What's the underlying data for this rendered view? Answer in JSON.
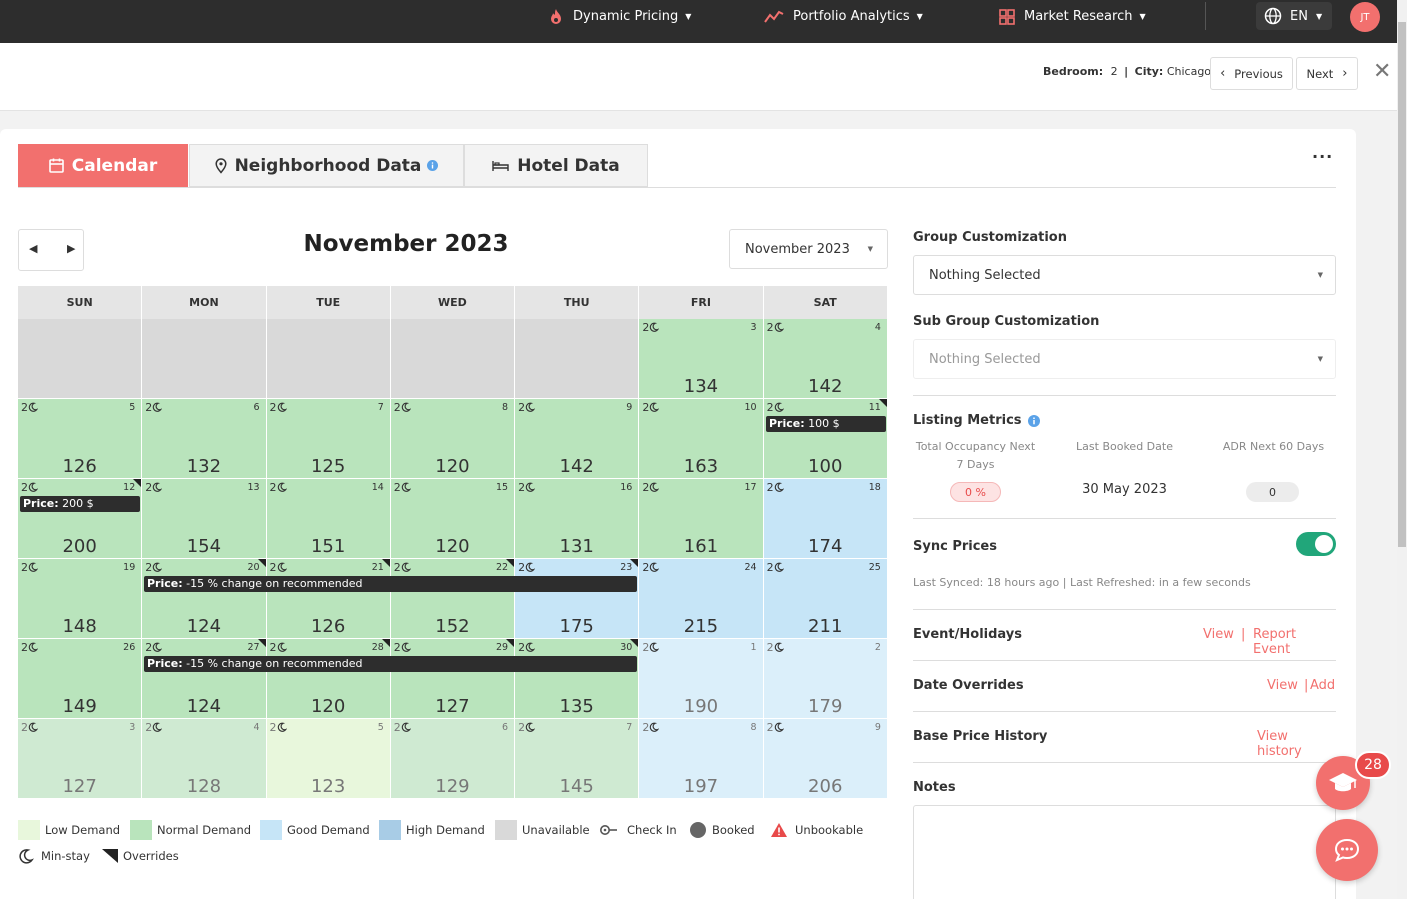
{
  "nav": {
    "items": [
      {
        "label": "Dynamic Pricing",
        "icon": "flame-icon"
      },
      {
        "label": "Portfolio Analytics",
        "icon": "trend-icon"
      },
      {
        "label": "Market Research",
        "icon": "grid-icon"
      }
    ],
    "lang": "EN",
    "avatar": "JT"
  },
  "header": {
    "bedroom_label": "Bedroom:",
    "bedroom_value": "2",
    "sep": "|",
    "city_label": "City:",
    "city_value": "Chicago",
    "prev": "Previous",
    "next": "Next"
  },
  "tabs": {
    "calendar": "Calendar",
    "neighborhood": "Neighborhood Data",
    "hotel": "Hotel Data",
    "more": "···"
  },
  "calendar": {
    "title": "November 2023",
    "month_select": "November 2023",
    "days_of_week": [
      "SUN",
      "MON",
      "TUE",
      "WED",
      "THU",
      "FRI",
      "SAT"
    ],
    "minstay": "2",
    "weeks": [
      [
        {
          "day": "",
          "price": "",
          "status": "unavailable"
        },
        {
          "day": "",
          "price": "",
          "status": "unavailable"
        },
        {
          "day": "",
          "price": "",
          "status": "unavailable"
        },
        {
          "day": "",
          "price": "",
          "status": "unavailable"
        },
        {
          "day": "",
          "price": "",
          "status": "unavailable"
        },
        {
          "day": "3",
          "price": "134",
          "status": "normal"
        },
        {
          "day": "4",
          "price": "142",
          "status": "normal"
        }
      ],
      [
        {
          "day": "5",
          "price": "126",
          "status": "normal"
        },
        {
          "day": "6",
          "price": "132",
          "status": "normal"
        },
        {
          "day": "7",
          "price": "125",
          "status": "normal"
        },
        {
          "day": "8",
          "price": "120",
          "status": "normal"
        },
        {
          "day": "9",
          "price": "142",
          "status": "normal"
        },
        {
          "day": "10",
          "price": "163",
          "status": "normal"
        },
        {
          "day": "11",
          "price": "100",
          "status": "normal",
          "override": true
        }
      ],
      [
        {
          "day": "12",
          "price": "200",
          "status": "normal",
          "override": true
        },
        {
          "day": "13",
          "price": "154",
          "status": "normal"
        },
        {
          "day": "14",
          "price": "151",
          "status": "normal"
        },
        {
          "day": "15",
          "price": "120",
          "status": "normal"
        },
        {
          "day": "16",
          "price": "131",
          "status": "normal"
        },
        {
          "day": "17",
          "price": "161",
          "status": "normal"
        },
        {
          "day": "18",
          "price": "174",
          "status": "good"
        }
      ],
      [
        {
          "day": "19",
          "price": "148",
          "status": "normal"
        },
        {
          "day": "20",
          "price": "124",
          "status": "normal",
          "override": true
        },
        {
          "day": "21",
          "price": "126",
          "status": "normal",
          "override": true
        },
        {
          "day": "22",
          "price": "152",
          "status": "normal",
          "override": true
        },
        {
          "day": "23",
          "price": "175",
          "status": "good",
          "override": true
        },
        {
          "day": "24",
          "price": "215",
          "status": "good"
        },
        {
          "day": "25",
          "price": "211",
          "status": "good"
        }
      ],
      [
        {
          "day": "26",
          "price": "149",
          "status": "normal"
        },
        {
          "day": "27",
          "price": "124",
          "status": "normal",
          "override": true
        },
        {
          "day": "28",
          "price": "120",
          "status": "normal",
          "override": true
        },
        {
          "day": "29",
          "price": "127",
          "status": "normal",
          "override": true
        },
        {
          "day": "30",
          "price": "135",
          "status": "normal",
          "override": true
        },
        {
          "day": "1",
          "price": "190",
          "status": "good-faded"
        },
        {
          "day": "2",
          "price": "179",
          "status": "good-faded"
        }
      ],
      [
        {
          "day": "3",
          "price": "127",
          "status": "normal-faded"
        },
        {
          "day": "4",
          "price": "128",
          "status": "normal-faded"
        },
        {
          "day": "5",
          "price": "123",
          "status": "low-faded"
        },
        {
          "day": "6",
          "price": "129",
          "status": "normal-faded"
        },
        {
          "day": "7",
          "price": "145",
          "status": "normal-faded"
        },
        {
          "day": "8",
          "price": "197",
          "status": "good-faded"
        },
        {
          "day": "9",
          "price": "206",
          "status": "good-faded"
        }
      ]
    ],
    "labels": {
      "price_word": "Price:",
      "sat11": "100 $",
      "sun12": "200 $",
      "wk4": "-15 % change on recommended",
      "wk5": "-15 % change on recommended"
    },
    "colors": {
      "unavailable": "#d9d9d9",
      "normal": "#b9e4bc",
      "good": "#c6e5f7",
      "normal_faded": "#cfead2",
      "good_faded": "#dbeffa",
      "low_faded": "#e8f7dc"
    }
  },
  "legend": [
    {
      "label": "Low Demand",
      "color": "#e8f7dc"
    },
    {
      "label": "Normal Demand",
      "color": "#b9e4bc"
    },
    {
      "label": "Good Demand",
      "color": "#c6e5f7"
    },
    {
      "label": "High Demand",
      "color": "#a8cce6"
    },
    {
      "label": "Unavailable",
      "color": "#d9d9d9"
    },
    {
      "label": "Check In",
      "icon": "key-icon"
    },
    {
      "label": "Booked",
      "icon": "dot-icon"
    },
    {
      "label": "Unbookable",
      "icon": "warning-icon"
    },
    {
      "label": "Min-stay",
      "icon": "moon-icon"
    },
    {
      "label": "Overrides",
      "icon": "corner-icon"
    }
  ],
  "panel": {
    "group_title": "Group Customization",
    "group_value": "Nothing Selected",
    "subgroup_title": "Sub Group Customization",
    "subgroup_value": "Nothing Selected",
    "metrics_title": "Listing Metrics",
    "metric1_label": "Total Occupancy Next 7 Days",
    "metric1_value": "0 %",
    "metric2_label": "Last Booked Date",
    "metric2_value": "30 May 2023",
    "metric3_label": "ADR Next 60 Days",
    "metric3_value": "0",
    "sync_title": "Sync Prices",
    "sync_info": "Last Synced: 18 hours ago | Last Refreshed: in a few seconds",
    "sync_on": true,
    "events_title": "Event/Holidays",
    "events_view": "View",
    "events_sep": "|",
    "events_report": "Report Event",
    "overrides_title": "Date Overrides",
    "overrides_view": "View",
    "overrides_sep": "|",
    "overrides_add": "Add",
    "history_title": "Base Price History",
    "history_link": "View history",
    "notes_title": "Notes"
  },
  "floating": {
    "badge": "28"
  }
}
